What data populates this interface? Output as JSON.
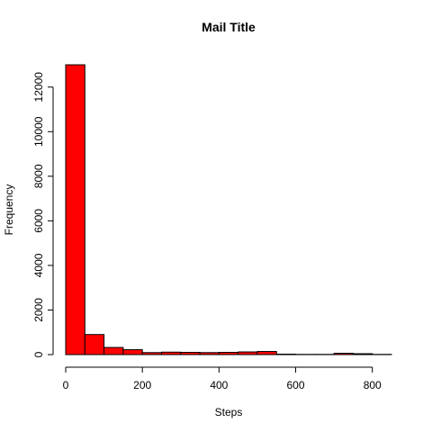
{
  "chart_data": {
    "type": "bar",
    "title": "Mail Title",
    "xlabel": "Steps",
    "ylabel": "Frequency",
    "bin_width": 50,
    "x": [
      0,
      50,
      100,
      150,
      200,
      250,
      300,
      350,
      400,
      450,
      500,
      550,
      600,
      650,
      700,
      750,
      800
    ],
    "values": [
      13000,
      900,
      320,
      220,
      90,
      110,
      100,
      90,
      100,
      120,
      140,
      20,
      10,
      10,
      60,
      40,
      10
    ],
    "xlim": [
      0,
      850
    ],
    "ylim": [
      0,
      13000
    ],
    "xticks": [
      0,
      200,
      400,
      600,
      800
    ],
    "yticks": [
      0,
      2000,
      4000,
      6000,
      8000,
      10000,
      12000
    ],
    "bar_color": "#ff0000",
    "grid": false,
    "legend": null
  }
}
